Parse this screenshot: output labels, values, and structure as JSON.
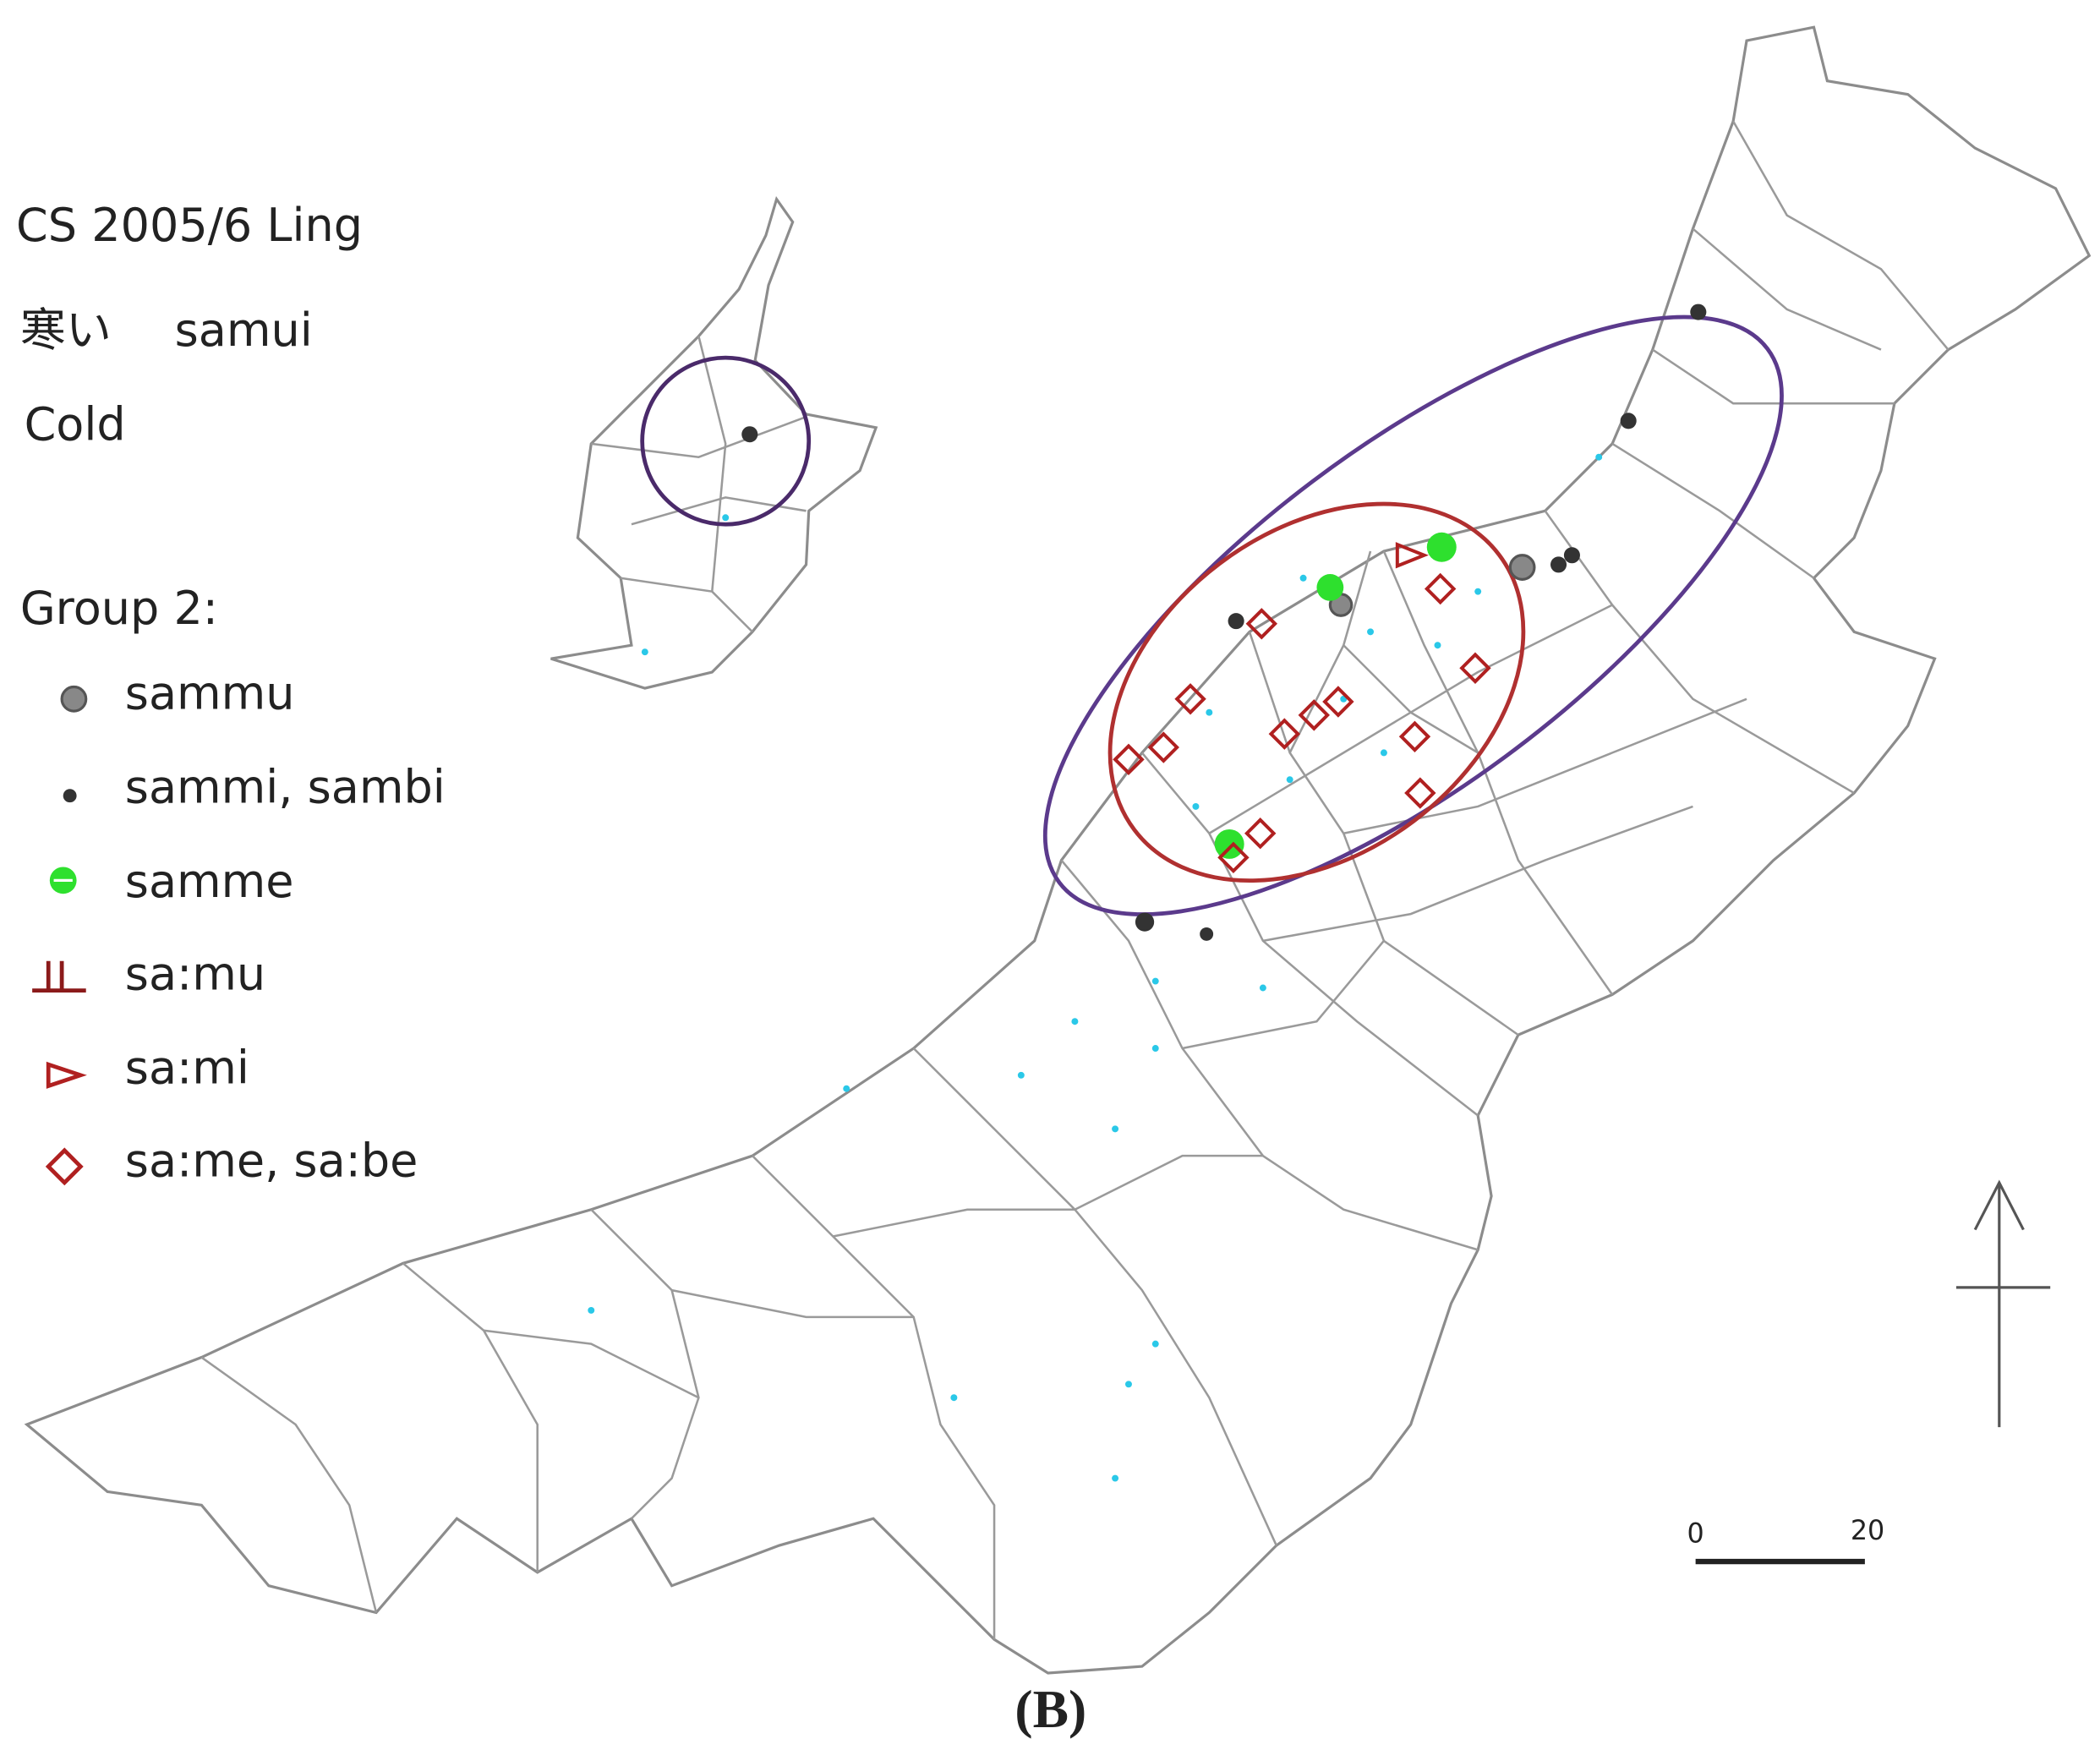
{
  "header": {
    "source": "CS 2005/6 Ling",
    "word_japanese": "寒い",
    "word_romaji": "samui",
    "gloss": "Cold"
  },
  "legend": {
    "title": "Group 2:",
    "items": [
      "sammu",
      "sammi, sambi",
      "samme",
      "sa:mu",
      "sa:mi",
      "sa:me, sa:be"
    ]
  },
  "scale_bar": {
    "start": 0,
    "end": 20
  },
  "caption": "(B)"
}
